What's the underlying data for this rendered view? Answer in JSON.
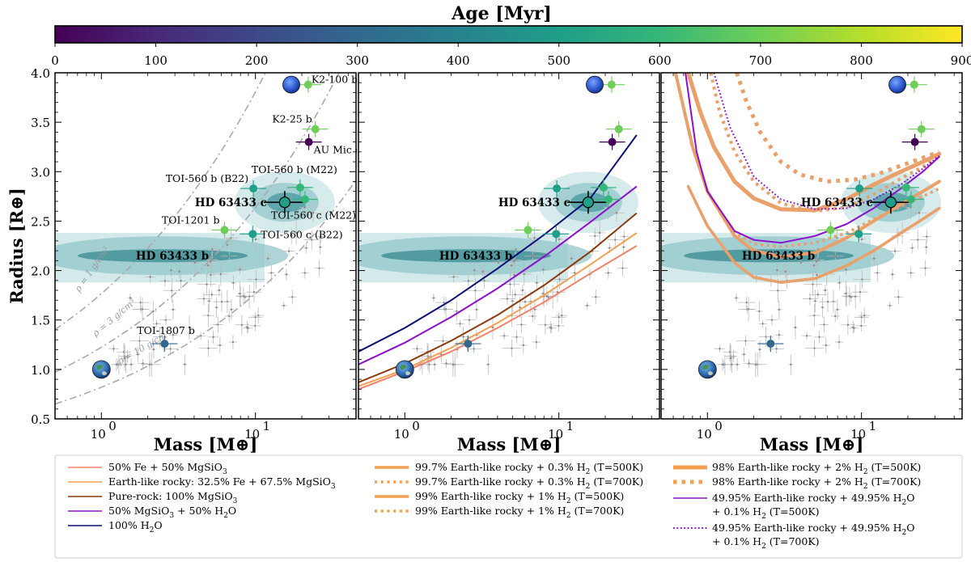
{
  "chart_data": {
    "type": "scatter",
    "colorbar": {
      "label": "Age [Myr]",
      "range": [
        0,
        900
      ],
      "ticks": [
        "0",
        "100",
        "200",
        "300",
        "400",
        "500",
        "600",
        "700",
        "800",
        "900"
      ],
      "colormap": [
        "#440154",
        "#482878",
        "#3e4989",
        "#31688e",
        "#26828e",
        "#1f9e89",
        "#35b779",
        "#6ece58",
        "#b5de2b",
        "#fde725"
      ]
    },
    "xlabel": "Mass [M⊕]",
    "ylabel": "Radius [R⊕]",
    "xscale": "log",
    "xlim": [
      0.5,
      45
    ],
    "ylim": [
      0.5,
      4.0
    ],
    "xtick_labels": [
      "10",
      "10"
    ],
    "xtick_exponents": [
      "0",
      "1"
    ],
    "ytick_labels": [
      "0.5",
      "1.0",
      "1.5",
      "2.0",
      "2.5",
      "3.0",
      "3.5",
      "4.0"
    ],
    "labeled_planets": [
      {
        "name": "K2-100 b",
        "mass": 22,
        "radius": 3.88,
        "color": "#6ece58"
      },
      {
        "name": "K2-25 b",
        "mass": 24.5,
        "radius": 3.43,
        "color": "#6ece58"
      },
      {
        "name": "AU Mic c",
        "mass": 22.2,
        "radius": 3.3,
        "color": "#440154"
      },
      {
        "name": "TOI-560 b (M22)",
        "mass": 19.5,
        "radius": 2.84,
        "color": "#35b779"
      },
      {
        "name": "TOI-560 b (B22)",
        "mass": 9.7,
        "radius": 2.83,
        "color": "#1f9e89"
      },
      {
        "name": "HD 63433 c",
        "mass": 15.5,
        "radius": 2.69,
        "color": "#1f9e89"
      },
      {
        "name": "TOI-560 c (M22)",
        "mass": 21.0,
        "radius": 2.72,
        "color": "#35b779"
      },
      {
        "name": "TOI-1201 b",
        "mass": 6.3,
        "radius": 2.41,
        "color": "#6ece58"
      },
      {
        "name": "TOI-560 c (B22)",
        "mass": 9.6,
        "radius": 2.37,
        "color": "#1f9e89"
      },
      {
        "name": "HD 63433 b",
        "mass": 2.5,
        "radius": 2.15,
        "color": "#26828e"
      },
      {
        "name": "TOI-1807 b",
        "mass": 2.57,
        "radius": 1.26,
        "color": "#31688e"
      }
    ],
    "density_curves": [
      {
        "label": "ρ = 1 g/cm³",
        "density": 1
      },
      {
        "label": "ρ = 3 g/cm³",
        "density": 3
      },
      {
        "label": "ρ = 10 g/cm³",
        "density": 10
      }
    ],
    "panels": [
      {
        "name": "observed",
        "legend": []
      },
      {
        "name": "composition",
        "legend": [
          {
            "label": "50% Fe + 50% MgSiO",
            "sub": "3",
            "color": "#f4826a"
          },
          {
            "label": "Earth-like rocky: 32.5% Fe + 67.5% MgSiO",
            "sub": "3",
            "color": "#f2a050"
          },
          {
            "label": "Pure-rock: 100% MgSiO",
            "sub": "3",
            "color": "#8b3a0e"
          },
          {
            "label": "50% MgSiO",
            "sub": "3",
            "label2": " + 50% H",
            "sub2": "2",
            "tail": "O",
            "color": "#8a10c9"
          },
          {
            "label": "100% H",
            "sub": "2",
            "tail": "O",
            "color": "#0c1075"
          }
        ],
        "curves": [
          {
            "name": "50% Fe + 50% MgSiO3",
            "x": [
              0.5,
              1,
              2,
              4,
              8,
              16,
              32
            ],
            "y": [
              0.8,
              0.98,
              1.18,
              1.42,
              1.68,
              1.97,
              2.25
            ],
            "color": "#f4826a"
          },
          {
            "name": "Earth-like rocky",
            "x": [
              0.5,
              1,
              2,
              4,
              8,
              16,
              32
            ],
            "y": [
              0.83,
              1.0,
              1.22,
              1.47,
              1.75,
              2.06,
              2.38
            ],
            "color": "#f2a050"
          },
          {
            "name": "Pure-rock",
            "x": [
              0.5,
              1,
              2,
              4,
              8,
              16,
              32
            ],
            "y": [
              0.87,
              1.06,
              1.29,
              1.55,
              1.85,
              2.19,
              2.58
            ],
            "color": "#8b3a0e"
          },
          {
            "name": "50% MgSiO3 + 50% H2O",
            "x": [
              0.5,
              1,
              2,
              4,
              8,
              16,
              32
            ],
            "y": [
              1.05,
              1.27,
              1.53,
              1.82,
              2.14,
              2.49,
              2.85
            ],
            "color": "#8a10c9"
          },
          {
            "name": "100% H2O",
            "x": [
              0.5,
              1,
              2,
              4,
              8,
              16,
              32
            ],
            "y": [
              1.18,
              1.42,
              1.7,
              2.02,
              2.36,
              2.73,
              3.37
            ],
            "color": "#0c1075"
          }
        ]
      },
      {
        "name": "atmosphere",
        "legend_a": [
          {
            "label": "99.7% Earth-like rocky + 0.3% H",
            "sub": "2",
            "tail": " (T=500K)",
            "style": "solid-thick",
            "color": "#f2a050"
          },
          {
            "label": "99.7% Earth-like rocky + 0.3% H",
            "sub": "2",
            "tail": " (T=700K)",
            "style": "dotted",
            "color": "#f2a050"
          },
          {
            "label": "99% Earth-like rocky + 1% H",
            "sub": "2",
            "tail": " (T=500K)",
            "style": "solid-thick",
            "color": "#f2a050"
          },
          {
            "label": "99% Earth-like rocky + 1% H",
            "sub": "2",
            "tail": " (T=700K)",
            "style": "dotted",
            "color": "#f2a050"
          }
        ],
        "legend_b": [
          {
            "label": "98% Earth-like rocky + 2% H",
            "sub": "2",
            "tail": " (T=500K)",
            "style": "solid-xthick",
            "color": "#f2a050"
          },
          {
            "label": "98% Earth-like rocky + 2% H",
            "sub": "2",
            "tail": " (T=700K)",
            "style": "dotted-xthick",
            "color": "#f2a050"
          },
          {
            "label": "49.95% Earth-like rocky + 49.95% H",
            "sub": "2",
            "tail": "O",
            "line2": "+ 0.1% H",
            "sub3": "2",
            "tail3": " (T=500K)",
            "style": "solid",
            "color": "#8a10c9"
          },
          {
            "label": "49.95% Earth-like rocky + 49.95% H",
            "sub": "2",
            "tail": "O",
            "line2": "+ 0.1% H",
            "sub3": "2",
            "tail3": " (T=700K)",
            "style": "dotted",
            "color": "#8a10c9"
          }
        ],
        "curves": [
          {
            "name": "0.3% H2 500K",
            "x": [
              0.75,
              1,
              1.5,
              2,
              3,
              5,
              8,
              12,
              18,
              25,
              32
            ],
            "y": [
              2.85,
              2.45,
              2.08,
              1.93,
              1.88,
              1.92,
              2.05,
              2.2,
              2.38,
              2.52,
              2.63
            ],
            "style": "solid",
            "width": 3.5,
            "color": "#e9a06a"
          },
          {
            "name": "1% H2 500K",
            "x": [
              0.62,
              0.8,
              1,
              1.5,
              2,
              3,
              5,
              8,
              12,
              18,
              25,
              32
            ],
            "y": [
              4.0,
              3.25,
              2.8,
              2.35,
              2.2,
              2.14,
              2.18,
              2.33,
              2.5,
              2.67,
              2.8,
              2.9
            ],
            "style": "solid",
            "width": 4,
            "color": "#e9a06a"
          },
          {
            "name": "2% H2 500K",
            "x": [
              0.75,
              0.9,
              1.1,
              1.5,
              2,
              3,
              5,
              8,
              12,
              18,
              25,
              32
            ],
            "y": [
              4.0,
              3.6,
              3.25,
              2.9,
              2.73,
              2.62,
              2.61,
              2.72,
              2.87,
              3.0,
              3.1,
              3.18
            ],
            "style": "solid",
            "width": 5,
            "color": "#e9a06a"
          },
          {
            "name": "0.3% H2 700K",
            "x": [
              0.78,
              1,
              1.5,
              2,
              3,
              5,
              8,
              12,
              18,
              25,
              32
            ],
            "y": [
              3.3,
              2.8,
              2.38,
              2.27,
              2.24,
              2.28,
              2.38,
              2.52,
              2.65,
              2.75,
              2.83
            ],
            "style": "dotted",
            "width": 3.5,
            "color": "#e9a06a"
          },
          {
            "name": "1% H2 700K",
            "x": [
              1.05,
              1.2,
              1.5,
              2,
              3,
              5,
              8,
              12,
              18,
              25,
              32
            ],
            "y": [
              4.0,
              3.6,
              3.2,
              2.9,
              2.68,
              2.6,
              2.64,
              2.77,
              2.93,
              3.05,
              3.15
            ],
            "style": "dotted",
            "width": 4,
            "color": "#e9a06a"
          },
          {
            "name": "2% H2 700K",
            "x": [
              1.55,
              1.8,
              2.2,
              3,
              4,
              6,
              9,
              13,
              18,
              25,
              32
            ],
            "y": [
              4.0,
              3.7,
              3.4,
              3.1,
              2.97,
              2.9,
              2.92,
              2.98,
              3.06,
              3.14,
              3.2
            ],
            "style": "dotted",
            "width": 5,
            "color": "#e9a06a"
          },
          {
            "name": "H2O + 0.1% H2 500K",
            "x": [
              0.72,
              0.85,
              1,
              1.5,
              2,
              3,
              5,
              8,
              12,
              18,
              25,
              32
            ],
            "y": [
              4.0,
              3.2,
              2.8,
              2.4,
              2.31,
              2.28,
              2.35,
              2.47,
              2.63,
              2.83,
              3.0,
              3.15
            ],
            "style": "solid",
            "width": 2,
            "color": "#8a10c9"
          },
          {
            "name": "H2O + 0.1% H2 700K",
            "x": [
              1.1,
              1.4,
              2,
              3,
              5,
              8,
              12,
              18,
              25,
              32
            ],
            "y": [
              4.0,
              3.45,
              2.95,
              2.72,
              2.62,
              2.63,
              2.72,
              2.87,
              3.03,
              3.16
            ],
            "style": "dotted",
            "width": 2,
            "color": "#8a10c9"
          }
        ]
      }
    ]
  }
}
